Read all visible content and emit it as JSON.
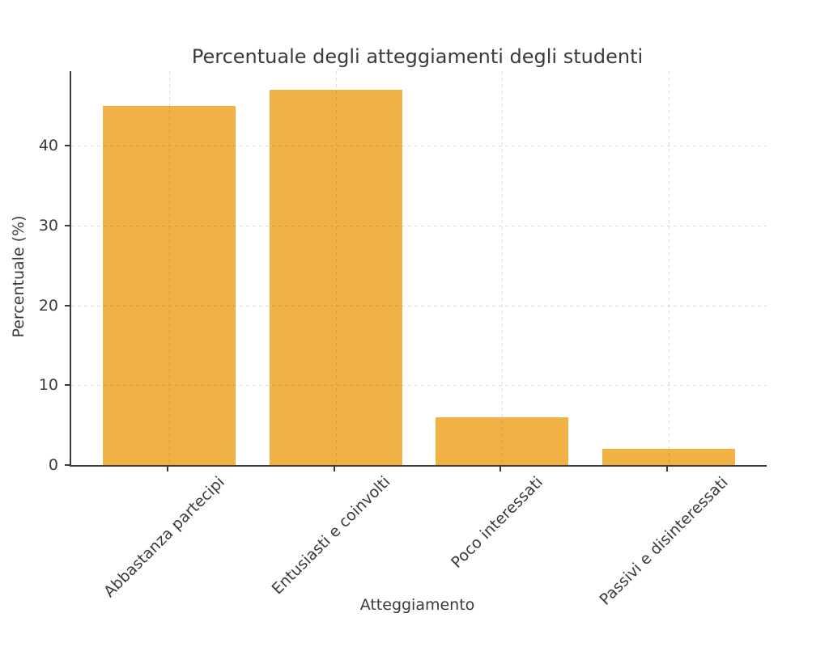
{
  "chart_data": {
    "type": "bar",
    "title": "Percentuale degli atteggiamenti degli studenti",
    "xlabel": "Atteggiamento",
    "ylabel": "Percentuale (%)",
    "categories": [
      "Abbastanza partecipi",
      "Entusiasti e coinvolti",
      "Poco interessati",
      "Passivi e disinteressati"
    ],
    "values": [
      45,
      47,
      6,
      2
    ],
    "yticks": [
      0,
      10,
      20,
      30,
      40
    ],
    "ylim": [
      0,
      49.35
    ],
    "xtick_rotation_deg": 45,
    "grid": "dashed, horizontal and vertical, drawn over bars",
    "legend": "none",
    "colors": {
      "bar": "#F2B144",
      "axis": "#3b3b3b",
      "text": "#3a3a3a",
      "background": "#ffffff"
    }
  }
}
